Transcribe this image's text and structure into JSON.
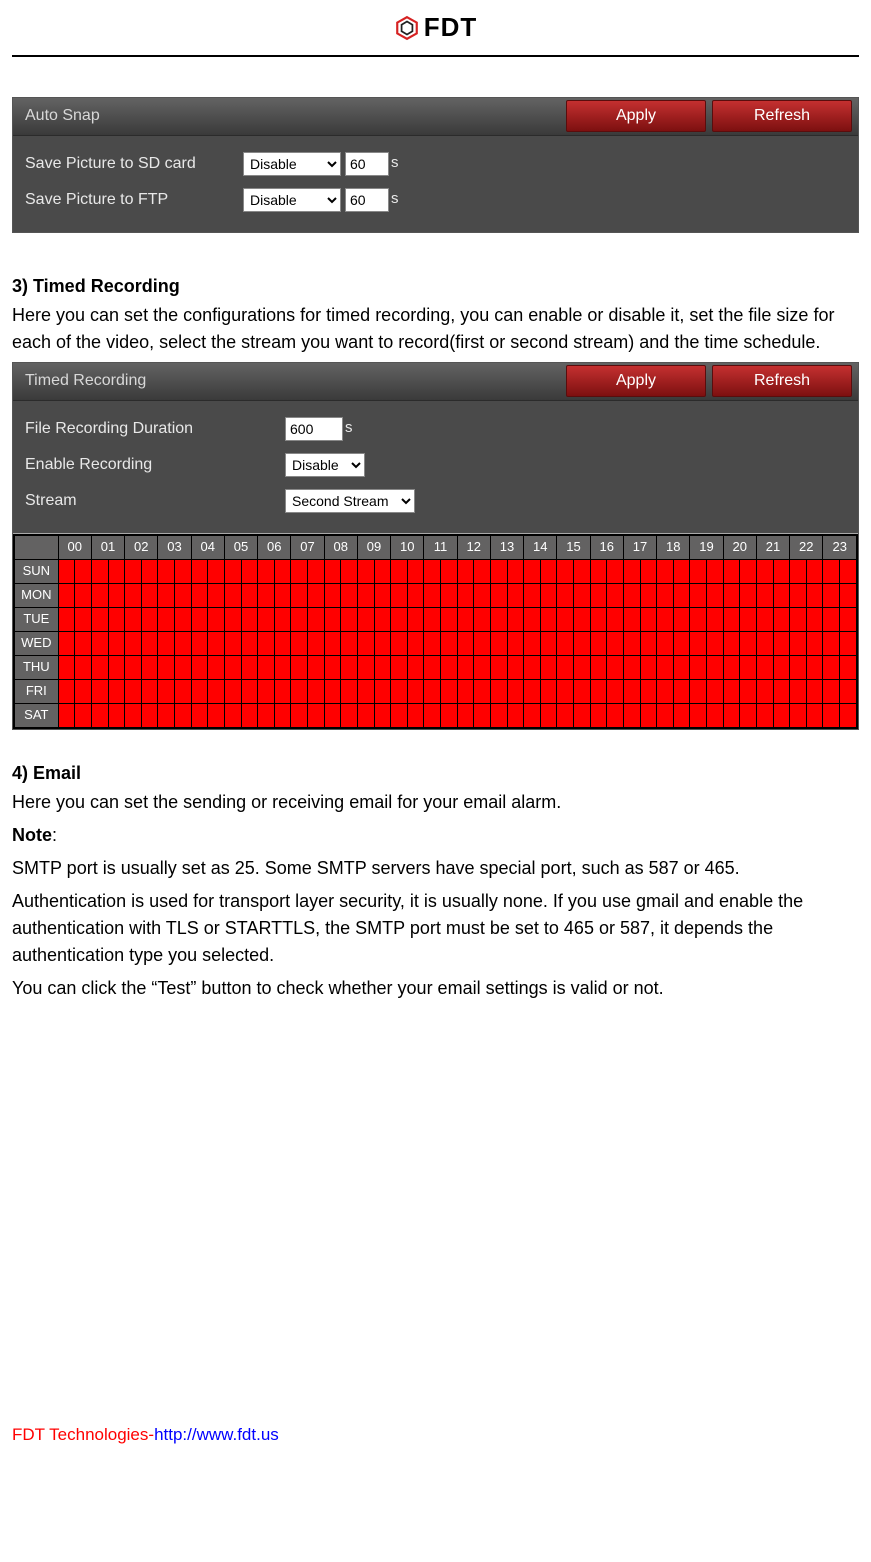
{
  "doc": {
    "logo_text": "FDT",
    "colors": {
      "panel_bg": "#4a4a4a",
      "header_grad_top": "#636363",
      "header_grad_bottom": "#3a3a3a",
      "button_grad_top": "#c43030",
      "button_grad_bottom": "#7d1010",
      "schedule_cell_bg": "#ff0000",
      "schedule_header_bg": "#636262",
      "text_light": "#e8e8e8"
    }
  },
  "auto_snap": {
    "title": "Auto Snap",
    "apply_label": "Apply",
    "refresh_label": "Refresh",
    "rows": [
      {
        "label": "Save Picture to SD card",
        "select_value": "Disable",
        "interval": "60",
        "unit": "s"
      },
      {
        "label": "Save Picture to FTP",
        "select_value": "Disable",
        "interval": "60",
        "unit": "s"
      }
    ]
  },
  "section3": {
    "heading": "3) Timed Recording",
    "body": "Here you can set the configurations for timed recording, you can enable or disable it, set the file size for each of the video, select the stream you want to record(first or second stream) and the time schedule."
  },
  "timed_rec": {
    "title": "Timed Recording",
    "apply_label": "Apply",
    "refresh_label": "Refresh",
    "duration_label": "File Recording Duration",
    "duration_value": "600",
    "duration_unit": "s",
    "enable_label": "Enable Recording",
    "enable_value": "Disable",
    "stream_label": "Stream",
    "stream_value": "Second Stream",
    "hours": [
      "00",
      "01",
      "02",
      "03",
      "04",
      "05",
      "06",
      "07",
      "08",
      "09",
      "10",
      "11",
      "12",
      "13",
      "14",
      "15",
      "16",
      "17",
      "18",
      "19",
      "20",
      "21",
      "22",
      "23"
    ],
    "days": [
      "SUN",
      "MON",
      "TUE",
      "WED",
      "THU",
      "FRI",
      "SAT"
    ],
    "slots_per_hour": 2,
    "cell_color": "#ff0000"
  },
  "section4": {
    "heading": "4) Email",
    "body1": "Here you can set the sending or receiving email for your email alarm.",
    "note_label": "Note",
    "note_colon": ":",
    "body2": "SMTP port is usually set as 25. Some SMTP servers have special port, such as 587 or 465.",
    "body3": "Authentication is used for transport layer security, it is usually none. If you use gmail and enable the authentication with TLS or STARTTLS, the SMTP port must be set to 465 or 587, it depends the authentication type you selected.",
    "body4": "You can click the “Test” button to check whether your email settings is valid or not."
  },
  "footer": {
    "company": "FDT Technologies",
    "sep": "-",
    "url": "http://www.fdt.us"
  }
}
